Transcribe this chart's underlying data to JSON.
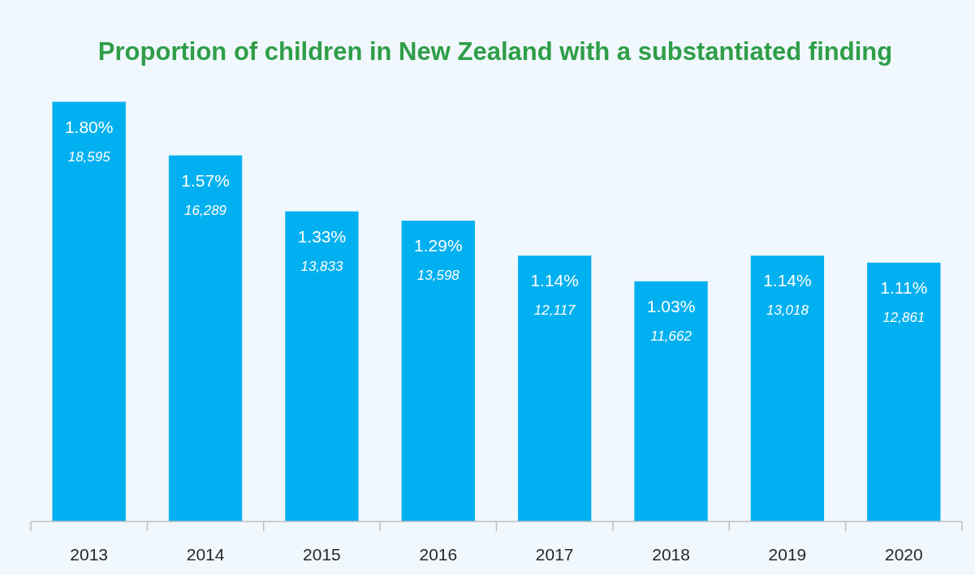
{
  "chart_data": {
    "type": "bar",
    "title": "Proportion of children in New Zealand with a substantiated finding",
    "categories": [
      "2013",
      "2014",
      "2015",
      "2016",
      "2017",
      "2018",
      "2019",
      "2020"
    ],
    "values": [
      1.8,
      1.57,
      1.33,
      1.29,
      1.14,
      1.03,
      1.14,
      1.11
    ],
    "color": "#00b0f0",
    "value_labels": [
      "1.80%",
      "1.57%",
      "1.33%",
      "1.29%",
      "1.14%",
      "1.03%",
      "1.14%",
      "1.11%"
    ],
    "annotations": [
      "18,595",
      "16,289",
      "13,833",
      "13,598",
      "12,117",
      "11,662",
      "13,018",
      "12,861"
    ]
  }
}
